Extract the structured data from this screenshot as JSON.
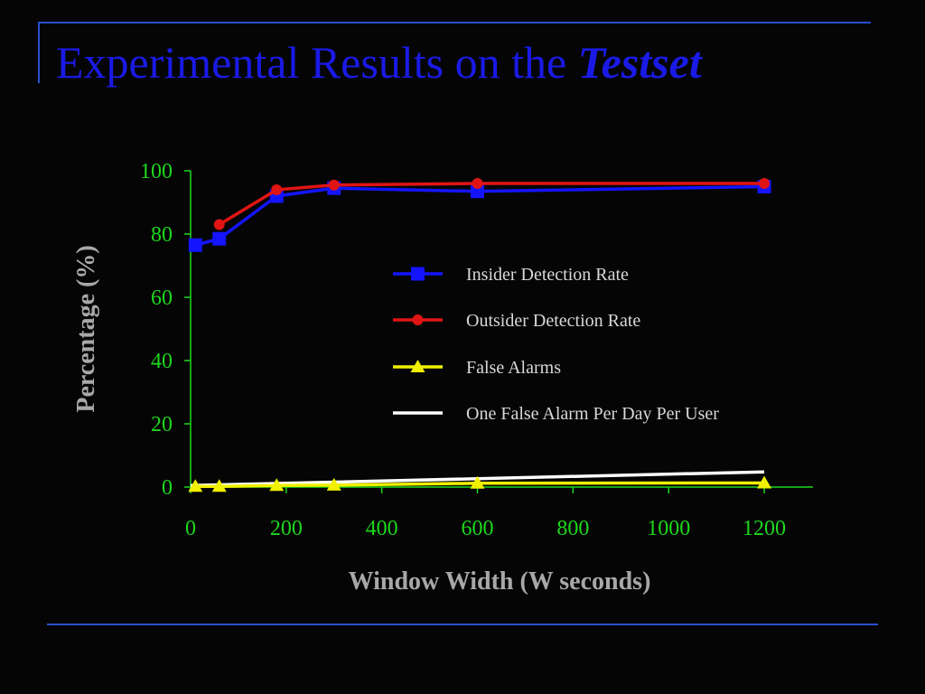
{
  "slide": {
    "title_main": "Experimental Results on the",
    "title_emph": "Testset"
  },
  "colors": {
    "background": "#050505",
    "rule": "#2a4fd0",
    "axis": "#1ed81e",
    "title": "#1a1ae6"
  },
  "chart_data": {
    "type": "line",
    "xlabel": "Window Width (W seconds)",
    "ylabel": "Percentage (%)",
    "xlim": [
      0,
      1300
    ],
    "ylim": [
      0,
      100
    ],
    "x_ticks": [
      0,
      200,
      400,
      600,
      800,
      1000,
      1200
    ],
    "y_ticks": [
      0,
      20,
      40,
      60,
      80,
      100
    ],
    "grid": false,
    "legend_position": "right-center",
    "series": [
      {
        "name": "Insider Detection Rate",
        "color": "#1414ff",
        "marker": "square",
        "x": [
          10,
          60,
          180,
          300,
          600,
          1200
        ],
        "y": [
          76.5,
          78.5,
          92,
          94.5,
          93.5,
          95
        ]
      },
      {
        "name": "Outsider Detection Rate",
        "color": "#e01414",
        "marker": "circle",
        "x": [
          60,
          180,
          300,
          600,
          1200
        ],
        "y": [
          83,
          94,
          95.5,
          96,
          96
        ]
      },
      {
        "name": "False Alarms",
        "color": "#f0f000",
        "marker": "triangle",
        "x": [
          10,
          60,
          180,
          300,
          600,
          1200
        ],
        "y": [
          0.2,
          0.2,
          0.5,
          0.6,
          1.2,
          1.3
        ]
      },
      {
        "name": "One False Alarm Per Day Per User",
        "color": "#ffffff",
        "marker": "none",
        "x": [
          0,
          1200
        ],
        "y": [
          0.5,
          4.8
        ]
      }
    ]
  }
}
